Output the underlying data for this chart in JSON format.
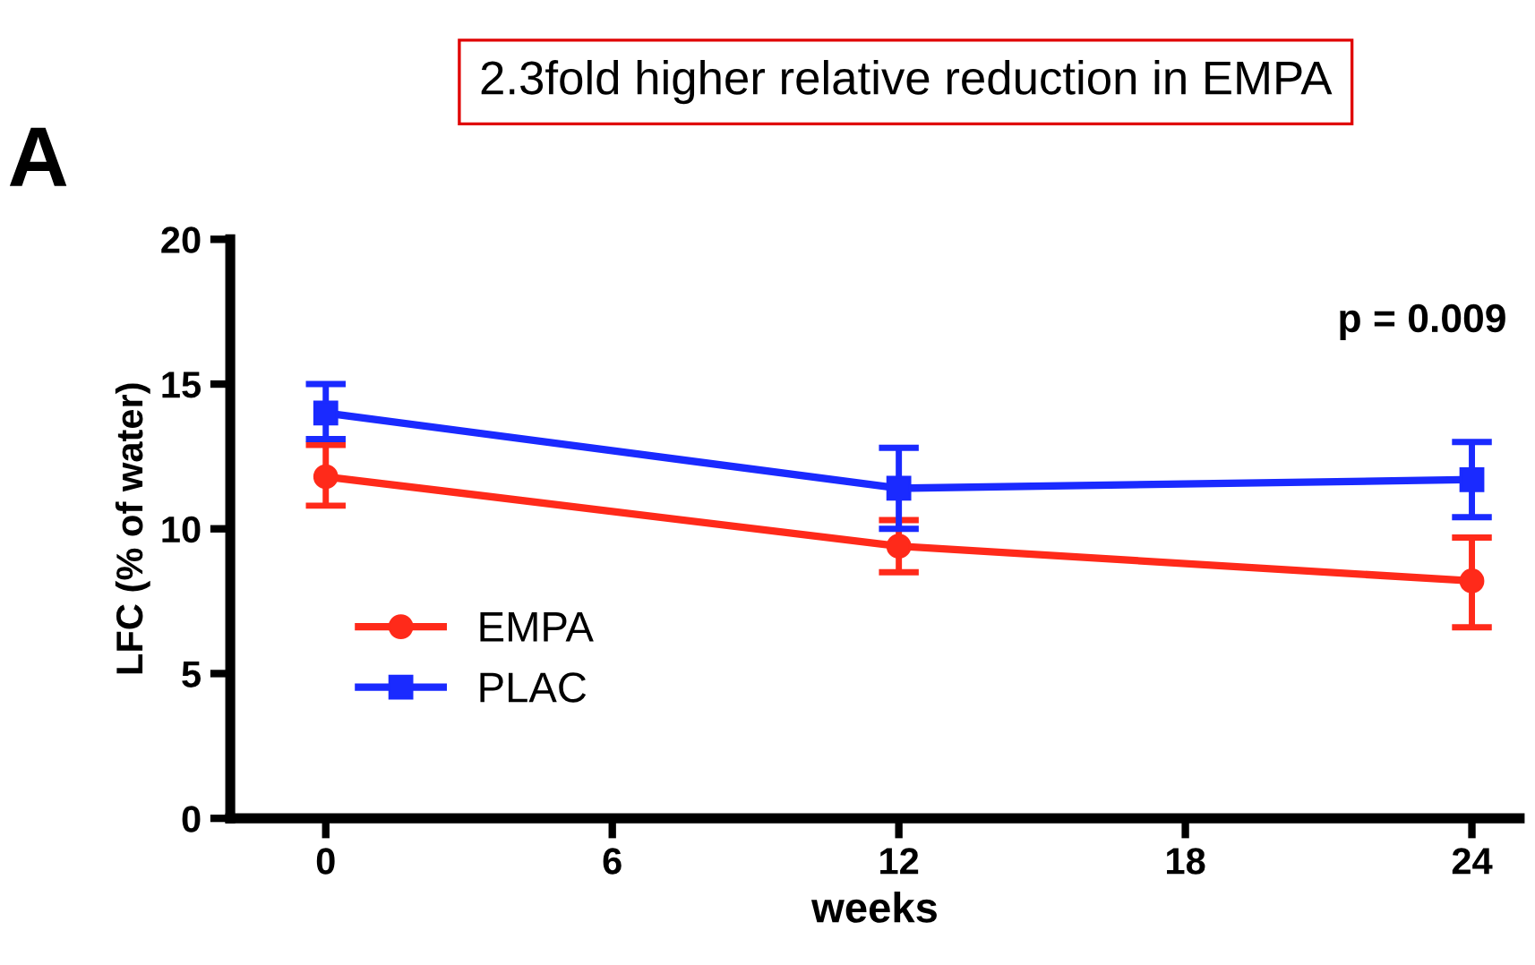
{
  "chart_data": {
    "type": "line",
    "title": "2.3fold higher relative reduction in EMPA",
    "xlabel": "weeks",
    "ylabel": "LFC (% of water)",
    "x": [
      0,
      12,
      24
    ],
    "series": [
      {
        "name": "EMPA",
        "color": "#ff2a1a",
        "values": [
          11.8,
          9.4,
          8.2
        ],
        "errors": [
          [
            10.8,
            12.9
          ],
          [
            8.5,
            10.3
          ],
          [
            6.6,
            9.7
          ]
        ],
        "marker": "circle"
      },
      {
        "name": "PLAC",
        "color": "#1a2aff",
        "values": [
          14.0,
          11.4,
          11.7
        ],
        "errors": [
          [
            13.1,
            15.0
          ],
          [
            10.0,
            12.8
          ],
          [
            10.4,
            13.0
          ]
        ],
        "marker": "square"
      }
    ],
    "xlim": [
      -2,
      25
    ],
    "xticks": [
      0,
      6,
      12,
      18,
      24
    ],
    "ylim": [
      0,
      20
    ],
    "yticks": [
      0,
      5,
      10,
      15,
      20
    ],
    "annotations": [
      "p = 0.009",
      "A"
    ],
    "legend": "bottom left",
    "grid": false
  }
}
